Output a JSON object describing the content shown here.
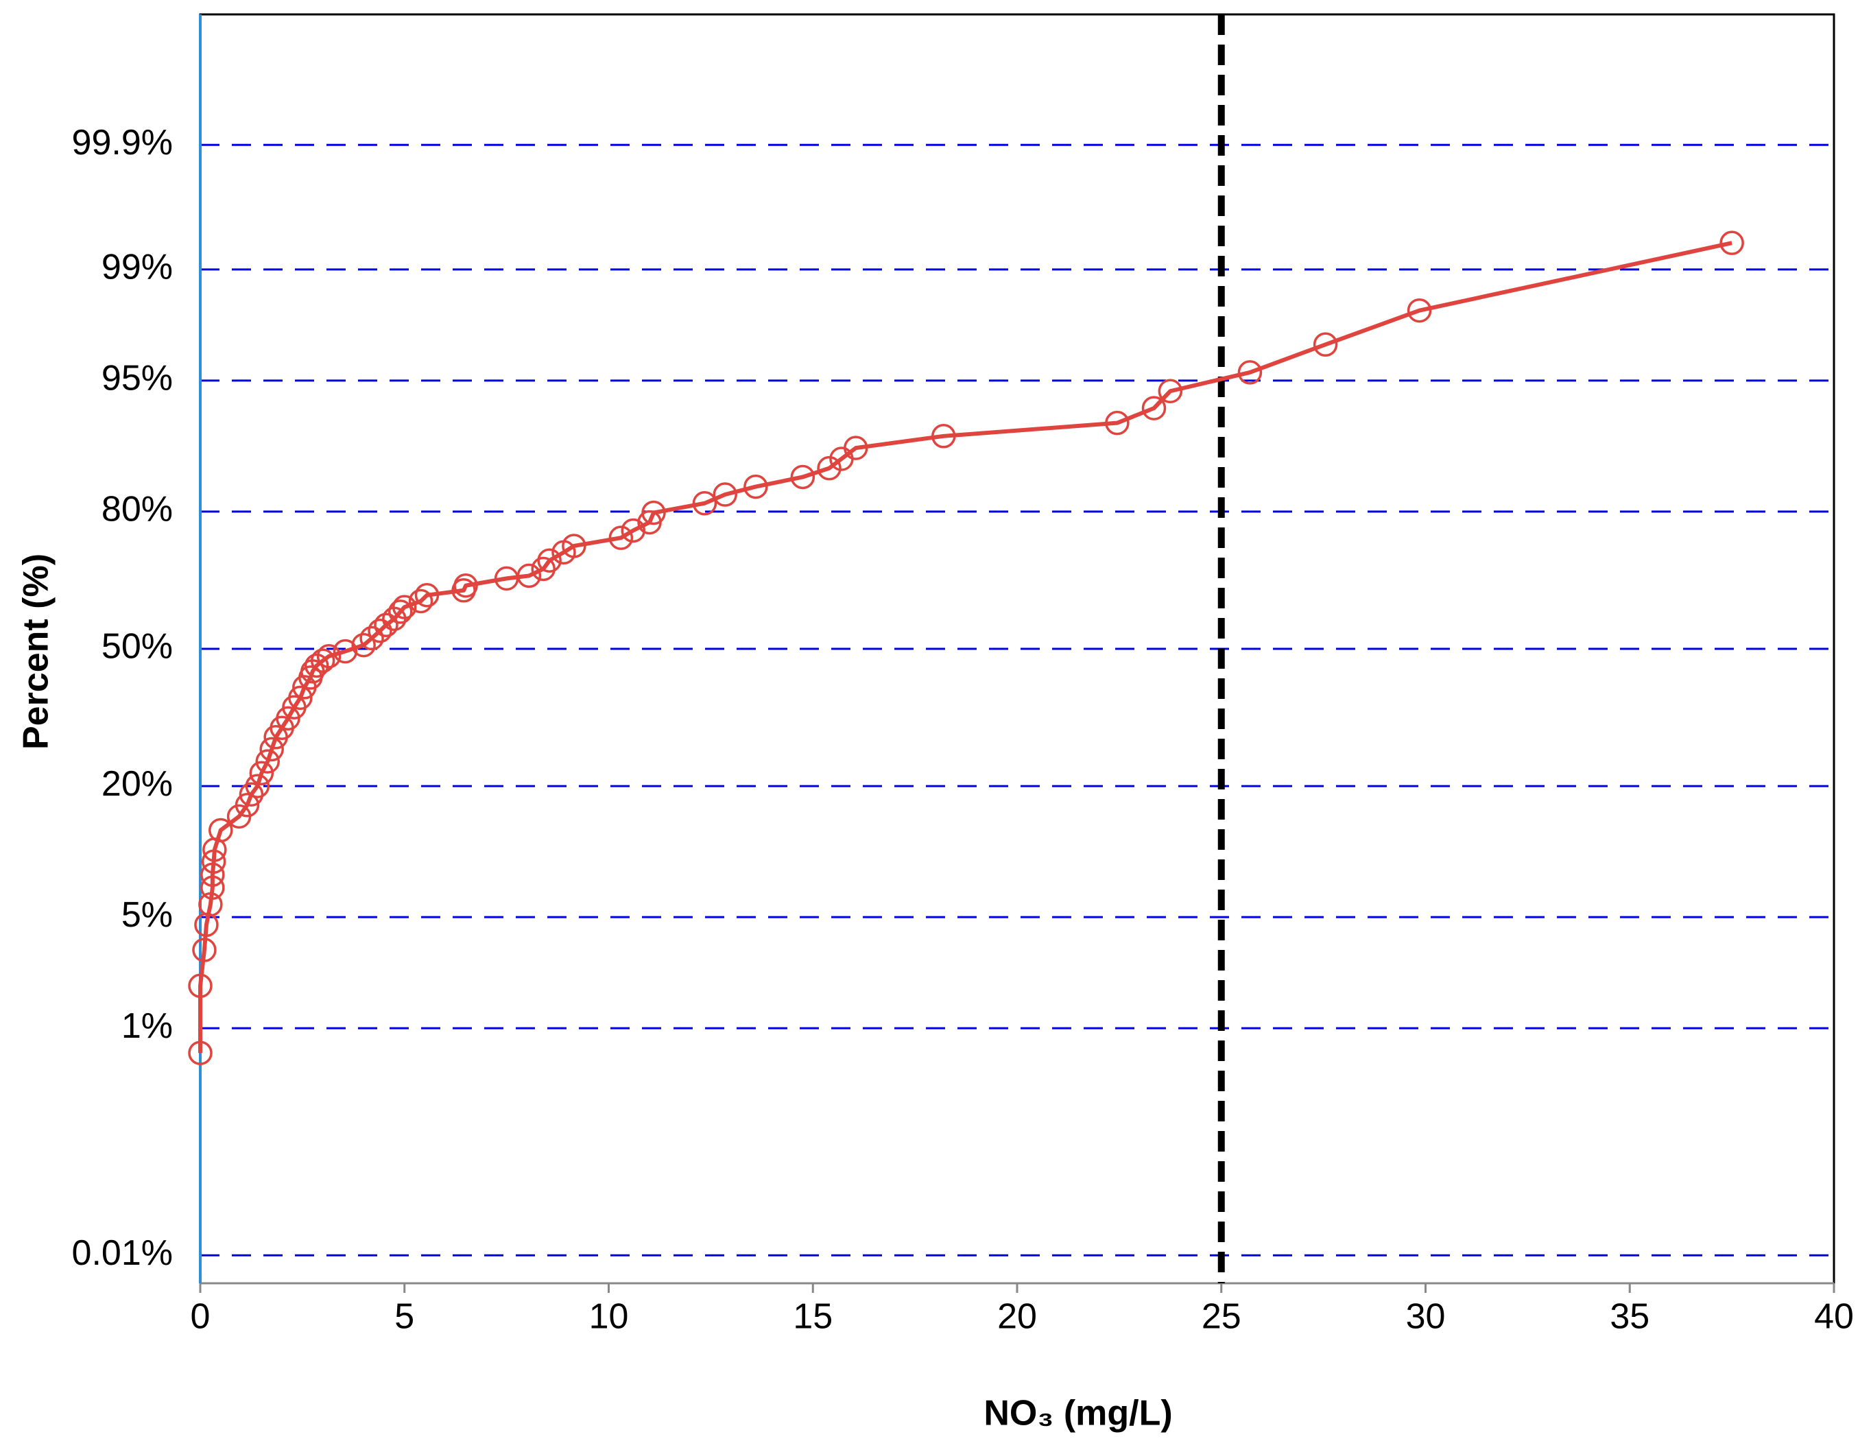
{
  "chart_data": {
    "type": "probability",
    "x_label": "NO₃ (mg/L)",
    "y_label": "Percent (%)",
    "yscale": "probability",
    "xlim": [
      0,
      40
    ],
    "xticks": [
      0,
      5,
      10,
      15,
      20,
      25,
      30,
      35,
      40
    ],
    "ylim": [
      0.005,
      99.995
    ],
    "yticks": [
      {
        "value": 0.01,
        "label": "0.01%"
      },
      {
        "value": 1,
        "label": "1%"
      },
      {
        "value": 5,
        "label": "5%"
      },
      {
        "value": 20,
        "label": "20%"
      },
      {
        "value": 50,
        "label": "50%"
      },
      {
        "value": 80,
        "label": "80%"
      },
      {
        "value": 95,
        "label": "95%"
      },
      {
        "value": 99,
        "label": "99%"
      },
      {
        "value": 99.9,
        "label": "99.9%"
      }
    ],
    "grid": true,
    "grid_color": "#0000e0",
    "reference_x": 25,
    "reference_color": "#000000",
    "series": [
      {
        "color": "#e0443e",
        "x": [
          0,
          0,
          0.1,
          0.15,
          0.25,
          0.3,
          0.3,
          0.33,
          0.35,
          0.5,
          0.95,
          1.15,
          1.25,
          1.4,
          1.5,
          1.65,
          1.75,
          1.85,
          2.0,
          2.15,
          2.3,
          2.45,
          2.55,
          2.7,
          2.75,
          2.85,
          3.0,
          3.15,
          3.55,
          4.0,
          4.2,
          4.4,
          4.55,
          4.75,
          4.9,
          5.0,
          5.4,
          5.55,
          6.45,
          6.5,
          7.5,
          8.05,
          8.4,
          8.55,
          8.9,
          9.15,
          10.3,
          10.6,
          11.0,
          11.1,
          12.35,
          12.85,
          13.6,
          14.75,
          15.4,
          15.7,
          16.05,
          18.2,
          22.45,
          23.35,
          23.75,
          25.7,
          27.55,
          29.85,
          37.5
        ],
        "values": [
          0.66,
          1.94,
          3.24,
          4.53,
          5.85,
          7.15,
          8.3,
          9.6,
          10.9,
          13.3,
          15.2,
          16.9,
          18.6,
          20.0,
          22.3,
          24.5,
          26.9,
          29.4,
          31.4,
          33.5,
          36.0,
          38.2,
          40.7,
          43.0,
          44.5,
          45.9,
          47.1,
          48.2,
          49.4,
          50.9,
          52.6,
          54.4,
          55.8,
          57.3,
          59.0,
          60.1,
          61.5,
          62.9,
          64.0,
          65.1,
          66.7,
          67.3,
          68.8,
          70.6,
          72.3,
          73.6,
          75.2,
          76.6,
          78.1,
          79.8,
          81.4,
          82.8,
          84.0,
          85.4,
          86.6,
          87.8,
          89.1,
          90.4,
          91.7,
          93.0,
          94.3,
          95.5,
          96.9,
          98.1,
          99.36
        ]
      }
    ]
  }
}
